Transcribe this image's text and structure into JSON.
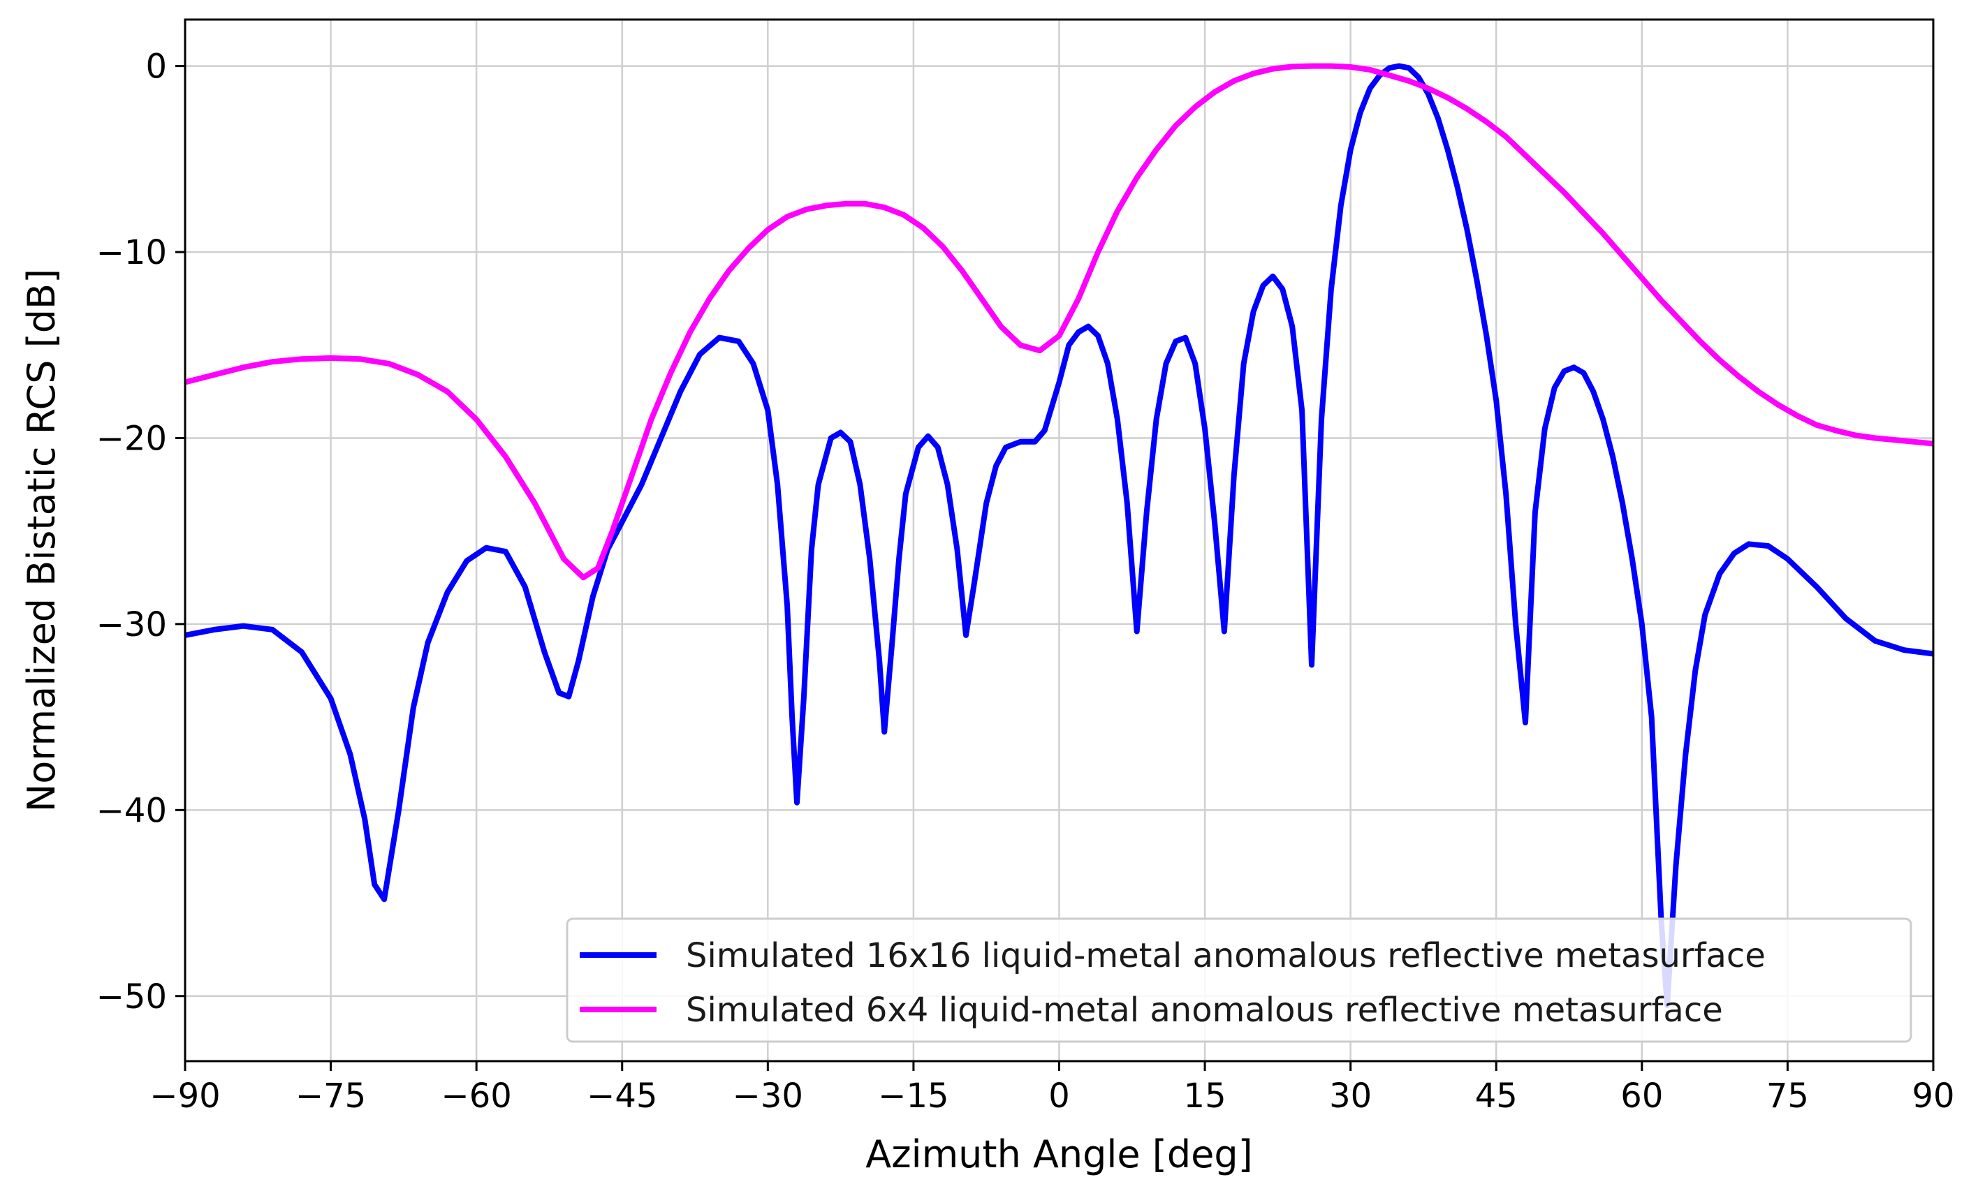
{
  "chart_data": {
    "type": "line",
    "title": "",
    "xlabel": "Azimuth Angle [deg]",
    "ylabel": "Normalized Bistatic RCS [dB]",
    "xlim": [
      -90,
      90
    ],
    "ylim": [
      -53.5,
      2.5
    ],
    "xticks": [
      -90,
      -75,
      -60,
      -45,
      -30,
      -15,
      0,
      15,
      30,
      45,
      60,
      75,
      90
    ],
    "yticks": [
      -50,
      -40,
      -30,
      -20,
      -10,
      0
    ],
    "grid": true,
    "legend_position": "bottom-right",
    "series": [
      {
        "name": "Simulated 16x16 liquid-metal anomalous reflective metasurface",
        "color": "#0000ff",
        "points": [
          [
            -90,
            -30.6
          ],
          [
            -87,
            -30.3
          ],
          [
            -84,
            -30.1
          ],
          [
            -81,
            -30.3
          ],
          [
            -78,
            -31.5
          ],
          [
            -75,
            -34.0
          ],
          [
            -73,
            -37.0
          ],
          [
            -71.5,
            -40.5
          ],
          [
            -70.5,
            -44.0
          ],
          [
            -69.5,
            -44.8
          ],
          [
            -68,
            -40.0
          ],
          [
            -66.5,
            -34.5
          ],
          [
            -65,
            -31.0
          ],
          [
            -63,
            -28.3
          ],
          [
            -61,
            -26.6
          ],
          [
            -59,
            -25.9
          ],
          [
            -57,
            -26.1
          ],
          [
            -55,
            -28.0
          ],
          [
            -53,
            -31.5
          ],
          [
            -51.5,
            -33.7
          ],
          [
            -50.5,
            -33.9
          ],
          [
            -49.5,
            -32.0
          ],
          [
            -48,
            -28.5
          ],
          [
            -46.5,
            -26.0
          ],
          [
            -45,
            -24.5
          ],
          [
            -43,
            -22.5
          ],
          [
            -41,
            -20.0
          ],
          [
            -39,
            -17.5
          ],
          [
            -37,
            -15.5
          ],
          [
            -35,
            -14.6
          ],
          [
            -33,
            -14.8
          ],
          [
            -31.5,
            -16.0
          ],
          [
            -30,
            -18.5
          ],
          [
            -29,
            -22.5
          ],
          [
            -28,
            -29.0
          ],
          [
            -27.5,
            -35.0
          ],
          [
            -27,
            -39.6
          ],
          [
            -26.3,
            -34.0
          ],
          [
            -25.5,
            -26.0
          ],
          [
            -24.8,
            -22.5
          ],
          [
            -23.5,
            -20.0
          ],
          [
            -22.5,
            -19.7
          ],
          [
            -21.5,
            -20.2
          ],
          [
            -20.5,
            -22.5
          ],
          [
            -19.5,
            -26.5
          ],
          [
            -18.5,
            -32.0
          ],
          [
            -18,
            -35.8
          ],
          [
            -17.2,
            -31.0
          ],
          [
            -16.5,
            -26.5
          ],
          [
            -15.8,
            -23.0
          ],
          [
            -14.5,
            -20.5
          ],
          [
            -13.5,
            -19.9
          ],
          [
            -12.5,
            -20.5
          ],
          [
            -11.5,
            -22.5
          ],
          [
            -10.5,
            -26.0
          ],
          [
            -9.6,
            -30.6
          ],
          [
            -8.8,
            -28.0
          ],
          [
            -7.5,
            -23.5
          ],
          [
            -6.5,
            -21.5
          ],
          [
            -5.5,
            -20.5
          ],
          [
            -4,
            -20.2
          ],
          [
            -2.5,
            -20.2
          ],
          [
            -1.5,
            -19.6
          ],
          [
            0,
            -17.0
          ],
          [
            1,
            -15.0
          ],
          [
            2,
            -14.3
          ],
          [
            3,
            -14.0
          ],
          [
            4,
            -14.5
          ],
          [
            5,
            -16.0
          ],
          [
            6,
            -19.0
          ],
          [
            7,
            -23.5
          ],
          [
            8,
            -30.4
          ],
          [
            9,
            -24.0
          ],
          [
            10,
            -19.0
          ],
          [
            11,
            -16.0
          ],
          [
            12,
            -14.8
          ],
          [
            13,
            -14.6
          ],
          [
            14,
            -16.0
          ],
          [
            15,
            -19.5
          ],
          [
            16,
            -24.5
          ],
          [
            17,
            -30.4
          ],
          [
            18,
            -22.0
          ],
          [
            19,
            -16.0
          ],
          [
            20,
            -13.2
          ],
          [
            21,
            -11.8
          ],
          [
            22,
            -11.3
          ],
          [
            23,
            -12.0
          ],
          [
            24,
            -14.0
          ],
          [
            25,
            -18.5
          ],
          [
            26,
            -32.2
          ],
          [
            27,
            -19.0
          ],
          [
            28,
            -12.0
          ],
          [
            29,
            -7.5
          ],
          [
            30,
            -4.5
          ],
          [
            31,
            -2.5
          ],
          [
            32,
            -1.2
          ],
          [
            33,
            -0.5
          ],
          [
            34,
            -0.1
          ],
          [
            35,
            0.0
          ],
          [
            36,
            -0.1
          ],
          [
            37,
            -0.6
          ],
          [
            38,
            -1.5
          ],
          [
            39,
            -2.8
          ],
          [
            40,
            -4.5
          ],
          [
            41,
            -6.5
          ],
          [
            42,
            -8.8
          ],
          [
            43,
            -11.5
          ],
          [
            44,
            -14.5
          ],
          [
            45,
            -18.0
          ],
          [
            46,
            -23.0
          ],
          [
            47,
            -30.0
          ],
          [
            48,
            -35.3
          ],
          [
            49,
            -24.0
          ],
          [
            50,
            -19.5
          ],
          [
            51,
            -17.3
          ],
          [
            52,
            -16.4
          ],
          [
            53,
            -16.2
          ],
          [
            54,
            -16.5
          ],
          [
            55,
            -17.5
          ],
          [
            56,
            -19.0
          ],
          [
            57,
            -21.0
          ],
          [
            58,
            -23.5
          ],
          [
            59,
            -26.5
          ],
          [
            60,
            -30.0
          ],
          [
            61,
            -35.0
          ],
          [
            62,
            -46.0
          ],
          [
            62.6,
            -50.5
          ],
          [
            63.5,
            -43.0
          ],
          [
            64.5,
            -37.0
          ],
          [
            65.5,
            -32.5
          ],
          [
            66.5,
            -29.5
          ],
          [
            68,
            -27.3
          ],
          [
            69.5,
            -26.2
          ],
          [
            71,
            -25.7
          ],
          [
            73,
            -25.8
          ],
          [
            75,
            -26.5
          ],
          [
            78,
            -28.0
          ],
          [
            81,
            -29.7
          ],
          [
            84,
            -30.9
          ],
          [
            87,
            -31.4
          ],
          [
            90,
            -31.6
          ]
        ]
      },
      {
        "name": "Simulated 6x4 liquid-metal anomalous reflective metasurface",
        "color": "#ff00ff",
        "points": [
          [
            -90,
            -17.0
          ],
          [
            -87,
            -16.6
          ],
          [
            -84,
            -16.2
          ],
          [
            -81,
            -15.9
          ],
          [
            -78,
            -15.75
          ],
          [
            -75,
            -15.7
          ],
          [
            -72,
            -15.75
          ],
          [
            -69,
            -16.0
          ],
          [
            -66,
            -16.6
          ],
          [
            -63,
            -17.5
          ],
          [
            -60,
            -19.0
          ],
          [
            -57,
            -21.0
          ],
          [
            -54,
            -23.5
          ],
          [
            -51,
            -26.5
          ],
          [
            -49,
            -27.5
          ],
          [
            -47.5,
            -27.0
          ],
          [
            -46,
            -25.0
          ],
          [
            -44,
            -22.0
          ],
          [
            -42,
            -19.0
          ],
          [
            -40,
            -16.5
          ],
          [
            -38,
            -14.3
          ],
          [
            -36,
            -12.5
          ],
          [
            -34,
            -11.0
          ],
          [
            -32,
            -9.8
          ],
          [
            -30,
            -8.8
          ],
          [
            -28,
            -8.1
          ],
          [
            -26,
            -7.7
          ],
          [
            -24,
            -7.5
          ],
          [
            -22,
            -7.4
          ],
          [
            -20,
            -7.4
          ],
          [
            -18,
            -7.6
          ],
          [
            -16,
            -8.0
          ],
          [
            -14,
            -8.7
          ],
          [
            -12,
            -9.7
          ],
          [
            -10,
            -11.0
          ],
          [
            -8,
            -12.5
          ],
          [
            -6,
            -14.0
          ],
          [
            -4,
            -15.0
          ],
          [
            -2,
            -15.3
          ],
          [
            0,
            -14.5
          ],
          [
            2,
            -12.5
          ],
          [
            4,
            -10.0
          ],
          [
            6,
            -7.8
          ],
          [
            8,
            -6.0
          ],
          [
            10,
            -4.5
          ],
          [
            12,
            -3.2
          ],
          [
            14,
            -2.2
          ],
          [
            16,
            -1.4
          ],
          [
            18,
            -0.8
          ],
          [
            20,
            -0.4
          ],
          [
            22,
            -0.15
          ],
          [
            24,
            -0.03
          ],
          [
            26,
            0.0
          ],
          [
            28,
            0.0
          ],
          [
            30,
            -0.05
          ],
          [
            32,
            -0.2
          ],
          [
            34,
            -0.5
          ],
          [
            36,
            -0.8
          ],
          [
            38,
            -1.2
          ],
          [
            40,
            -1.7
          ],
          [
            42,
            -2.3
          ],
          [
            44,
            -3.0
          ],
          [
            46,
            -3.8
          ],
          [
            48,
            -4.8
          ],
          [
            50,
            -5.8
          ],
          [
            52,
            -6.8
          ],
          [
            54,
            -7.9
          ],
          [
            56,
            -9.0
          ],
          [
            58,
            -10.2
          ],
          [
            60,
            -11.4
          ],
          [
            62,
            -12.6
          ],
          [
            64,
            -13.7
          ],
          [
            66,
            -14.8
          ],
          [
            68,
            -15.8
          ],
          [
            70,
            -16.7
          ],
          [
            72,
            -17.5
          ],
          [
            74,
            -18.2
          ],
          [
            76,
            -18.8
          ],
          [
            78,
            -19.3
          ],
          [
            80,
            -19.6
          ],
          [
            82,
            -19.85
          ],
          [
            84,
            -20.0
          ],
          [
            86,
            -20.1
          ],
          [
            88,
            -20.2
          ],
          [
            90,
            -20.3
          ]
        ]
      }
    ]
  }
}
